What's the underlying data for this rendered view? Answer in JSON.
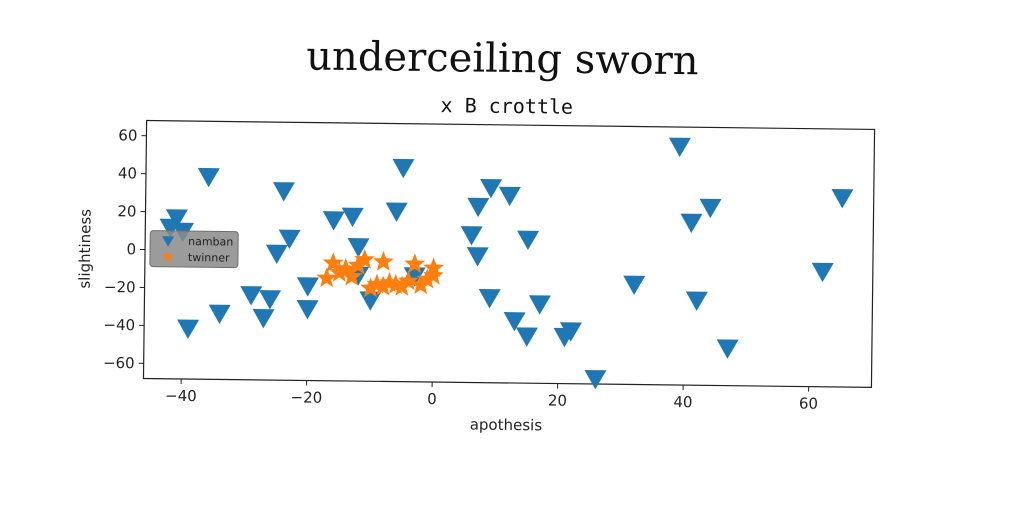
{
  "chart_data": {
    "type": "scatter",
    "title": "underceiling sworn",
    "subtitle": "x B crottle",
    "xlabel": "apothesis",
    "ylabel": "slightiness",
    "xlim": [
      -46,
      70
    ],
    "ylim": [
      -68,
      68
    ],
    "xticks": [
      -40,
      -20,
      0,
      20,
      40,
      60
    ],
    "yticks": [
      -60,
      -40,
      -20,
      0,
      20,
      40,
      60
    ],
    "grid": false,
    "legend_position": "center-left",
    "series": [
      {
        "name": "namban",
        "marker": "triangle-down",
        "color": "#1f77b4",
        "points": [
          [
            -41,
            17
          ],
          [
            -42,
            12
          ],
          [
            -40,
            10
          ],
          [
            -36,
            39
          ],
          [
            -39,
            -41
          ],
          [
            -34,
            -33
          ],
          [
            -29,
            -23
          ],
          [
            -27,
            -35
          ],
          [
            -26,
            -25
          ],
          [
            -25,
            -1
          ],
          [
            -24,
            32
          ],
          [
            -23,
            7
          ],
          [
            -20,
            -18
          ],
          [
            -20,
            -30
          ],
          [
            -16,
            17
          ],
          [
            -13,
            19
          ],
          [
            -12,
            3
          ],
          [
            -12,
            -12
          ],
          [
            -10,
            -25
          ],
          [
            -6,
            22
          ],
          [
            -5,
            45
          ],
          [
            -3,
            -12
          ],
          [
            6,
            10
          ],
          [
            7,
            25
          ],
          [
            7,
            -1
          ],
          [
            9,
            -23
          ],
          [
            9,
            35
          ],
          [
            12,
            31
          ],
          [
            13,
            -35
          ],
          [
            15,
            -43
          ],
          [
            15,
            8
          ],
          [
            17,
            -26
          ],
          [
            21,
            -43
          ],
          [
            22,
            -40
          ],
          [
            26,
            -65
          ],
          [
            32,
            -15
          ],
          [
            39,
            58
          ],
          [
            41,
            18
          ],
          [
            42,
            -23
          ],
          [
            44,
            26
          ],
          [
            47,
            -48
          ],
          [
            62,
            -7
          ],
          [
            65,
            32
          ]
        ]
      },
      {
        "name": "twinner",
        "marker": "star",
        "color": "#ff7f0e",
        "points": [
          [
            -17,
            -14
          ],
          [
            -16,
            -6
          ],
          [
            -15,
            -11
          ],
          [
            -14,
            -9
          ],
          [
            -13,
            -13
          ],
          [
            -12,
            -7
          ],
          [
            -11,
            -4
          ],
          [
            -10,
            -19
          ],
          [
            -9,
            -17
          ],
          [
            -8,
            -5
          ],
          [
            -8,
            -18
          ],
          [
            -7,
            -16
          ],
          [
            -6,
            -17
          ],
          [
            -5,
            -18
          ],
          [
            -4,
            -15
          ],
          [
            -3,
            -6
          ],
          [
            -2,
            -17
          ],
          [
            -1,
            -14
          ],
          [
            0,
            -12
          ],
          [
            0,
            -8
          ]
        ]
      }
    ]
  }
}
